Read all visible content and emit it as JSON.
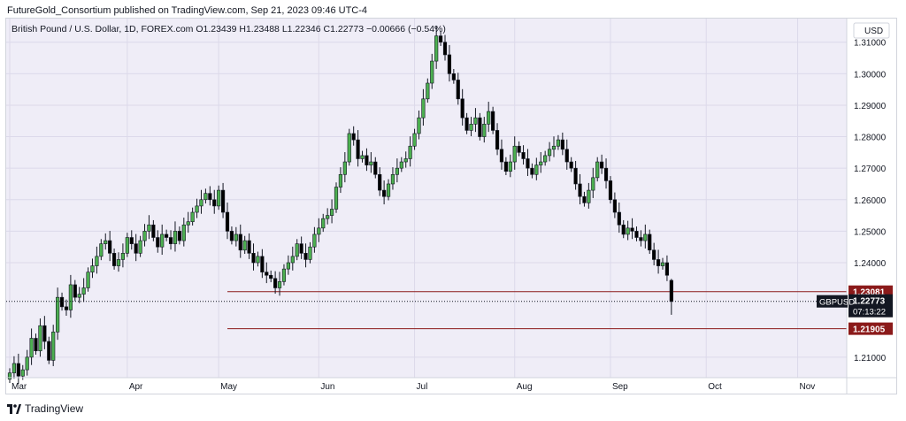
{
  "header": {
    "published": "FutureGold_Consortium published on TradingView.com, Sep 21, 2023 09:46 UTC-4"
  },
  "footer": {
    "brand": "TradingView"
  },
  "chart_data": {
    "type": "candlestick",
    "title": "British Pound / U.S. Dollar, 1D, FOREX.com",
    "ohlc_label": "O1.23439 H1.23488 L1.22346 C1.22773 −0.00666 (−0.54%)",
    "symbol": "GBPUSD",
    "currency": "USD",
    "y_ticks": [
      1.31,
      1.3,
      1.29,
      1.28,
      1.27,
      1.26,
      1.25,
      1.24,
      1.21
    ],
    "y_tick_labels": [
      "1.31000",
      "1.30000",
      "1.29000",
      "1.28000",
      "1.27000",
      "1.26000",
      "1.25000",
      "1.24000",
      "1.21000"
    ],
    "ylim": [
      1.2035,
      1.3175
    ],
    "x_labels": [
      "Mar",
      "Apr",
      "May",
      "Jun",
      "Jul",
      "Aug",
      "Sep",
      "Oct",
      "Nov"
    ],
    "x_label_index": [
      0,
      27,
      48,
      71,
      93,
      116,
      138,
      160,
      181
    ],
    "levels": [
      {
        "value": 1.23081,
        "label": "1.23081",
        "color": "#8b1a1a"
      },
      {
        "value": 1.21905,
        "label": "1.21905",
        "color": "#8b1a1a"
      }
    ],
    "last_price": {
      "value": 1.22773,
      "label": "1.22773",
      "countdown": "07:13:22"
    },
    "colors": {
      "up": "#4caf50",
      "down": "#000000",
      "wick": "#131722",
      "background": "#efedf7",
      "level": "#8b1a1a"
    },
    "closes": [
      1.205,
      1.208,
      1.204,
      1.206,
      1.21,
      1.216,
      1.212,
      1.22,
      1.215,
      1.209,
      1.218,
      1.229,
      1.226,
      1.225,
      1.233,
      1.229,
      1.23,
      1.232,
      1.237,
      1.239,
      1.242,
      1.246,
      1.247,
      1.243,
      1.239,
      1.241,
      1.243,
      1.248,
      1.246,
      1.243,
      1.247,
      1.25,
      1.252,
      1.248,
      1.245,
      1.249,
      1.248,
      1.246,
      1.25,
      1.247,
      1.252,
      1.253,
      1.256,
      1.258,
      1.26,
      1.262,
      1.26,
      1.258,
      1.263,
      1.256,
      1.25,
      1.247,
      1.249,
      1.244,
      1.247,
      1.243,
      1.24,
      1.242,
      1.237,
      1.236,
      1.235,
      1.232,
      1.234,
      1.238,
      1.24,
      1.242,
      1.246,
      1.243,
      1.241,
      1.245,
      1.249,
      1.251,
      1.254,
      1.255,
      1.257,
      1.264,
      1.268,
      1.272,
      1.281,
      1.279,
      1.273,
      1.274,
      1.271,
      1.272,
      1.268,
      1.263,
      1.261,
      1.265,
      1.268,
      1.27,
      1.272,
      1.273,
      1.277,
      1.281,
      1.286,
      1.292,
      1.297,
      1.304,
      1.312,
      1.31,
      1.306,
      1.3,
      1.298,
      1.292,
      1.286,
      1.282,
      1.284,
      1.286,
      1.28,
      1.284,
      1.288,
      1.282,
      1.276,
      1.272,
      1.269,
      1.272,
      1.277,
      1.275,
      1.273,
      1.27,
      1.268,
      1.271,
      1.272,
      1.274,
      1.276,
      1.277,
      1.279,
      1.276,
      1.272,
      1.27,
      1.265,
      1.261,
      1.259,
      1.263,
      1.267,
      1.272,
      1.27,
      1.266,
      1.26,
      1.256,
      1.252,
      1.249,
      1.251,
      1.25,
      1.248,
      1.247,
      1.249,
      1.244,
      1.241,
      1.239,
      1.24,
      1.236,
      1.2277
    ]
  }
}
